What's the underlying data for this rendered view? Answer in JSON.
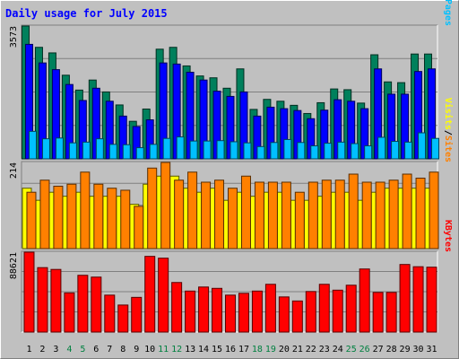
{
  "chart_data": {
    "type": "bar",
    "title": "Daily usage for July 2015",
    "days": [
      "1",
      "2",
      "3",
      "4",
      "5",
      "6",
      "7",
      "8",
      "9",
      "10",
      "11",
      "12",
      "13",
      "14",
      "15",
      "16",
      "17",
      "18",
      "19",
      "20",
      "21",
      "22",
      "23",
      "24",
      "25",
      "26",
      "27",
      "28",
      "29",
      "30",
      "31"
    ],
    "weekend_days": [
      "4",
      "5",
      "11",
      "12",
      "18",
      "19",
      "25",
      "26"
    ],
    "colors": {
      "background": "#c0c0c0",
      "title": "#0000ff",
      "hits": "#00805c",
      "files": "#0000ff",
      "pages": "#00c0ff",
      "visits": "#ffff00",
      "sites": "#ff8000",
      "kbytes": "#ff0000",
      "weekend_label": "#008040",
      "weekday_label": "#000000"
    },
    "panels": [
      {
        "id": "hits-files-pages",
        "max_label": "3573",
        "ymax": 3573,
        "legend": [
          {
            "text": "Hits",
            "color": "#00805c"
          },
          {
            "text": "/",
            "color": "#000000"
          },
          {
            "text": "Files",
            "color": "#0000ff"
          },
          {
            "text": "/",
            "color": "#000000"
          },
          {
            "text": "Pages",
            "color": "#00c0ff"
          }
        ],
        "series": [
          {
            "name": "Hits",
            "color": "#00805c",
            "values": [
              3573,
              3000,
              2850,
              2250,
              1850,
              2120,
              1800,
              1450,
              1010,
              1340,
              2950,
              3000,
              2500,
              2230,
              2180,
              1900,
              2420,
              1330,
              1600,
              1550,
              1440,
              1220,
              1510,
              1880,
              1860,
              1500,
              2800,
              2070,
              2050,
              2820,
              2820
            ]
          },
          {
            "name": "Files",
            "color": "#0000ff",
            "values": [
              3080,
              2580,
              2400,
              2000,
              1570,
              1900,
              1550,
              1150,
              870,
              1050,
              2580,
              2550,
              2330,
              2120,
              1820,
              1680,
              1800,
              1150,
              1390,
              1350,
              1300,
              1080,
              1310,
              1590,
              1550,
              1350,
              2420,
              1740,
              1740,
              2350,
              2420
            ]
          },
          {
            "name": "Pages",
            "color": "#00c0ff",
            "values": [
              740,
              540,
              560,
              430,
              450,
              540,
              390,
              380,
              300,
              390,
              550,
              590,
              480,
              480,
              490,
              460,
              430,
              330,
              440,
              520,
              440,
              350,
              420,
              450,
              410,
              350,
              580,
              470,
              450,
              700,
              550
            ]
          }
        ]
      },
      {
        "id": "visits-sites",
        "max_label": "214",
        "ymax": 214,
        "legend": [
          {
            "text": "Visits",
            "color": "#ffff00"
          },
          {
            "text": "/",
            "color": "#000000"
          },
          {
            "text": "Sites",
            "color": "#ff8000"
          }
        ],
        "series": [
          {
            "name": "Visits",
            "color": "#ffff00",
            "values": [
              150,
              120,
              140,
              130,
              140,
              130,
              130,
              130,
              110,
              160,
              180,
              180,
              150,
              140,
              150,
              120,
              140,
              130,
              140,
              140,
              120,
              120,
              130,
              140,
              140,
              120,
              140,
              150,
              150,
              150,
              150
            ]
          },
          {
            "name": "Sites",
            "color": "#ff8000",
            "values": [
              140,
              170,
              155,
              160,
              190,
              160,
              150,
              145,
              105,
              200,
              214,
              170,
              190,
              165,
              170,
              150,
              180,
              165,
              165,
              165,
              140,
              165,
              170,
              170,
              185,
              165,
              165,
              170,
              185,
              175,
              190
            ]
          }
        ]
      },
      {
        "id": "kbytes",
        "max_label": "88621",
        "ymax": 88621,
        "legend": [
          {
            "text": "KBytes",
            "color": "#ff0000"
          }
        ],
        "series": [
          {
            "name": "KBytes",
            "color": "#ff0000",
            "values": [
              88621,
              71500,
              69500,
              43500,
              63000,
              61000,
              41000,
              30000,
              38500,
              84000,
              82000,
              55000,
              45500,
              50000,
              48500,
              41000,
              43000,
              45500,
              53000,
              39000,
              34500,
              45000,
              53000,
              46500,
              52000,
              70000,
              44000,
              44000,
              75000,
              72500,
              72000
            ]
          }
        ]
      }
    ]
  }
}
